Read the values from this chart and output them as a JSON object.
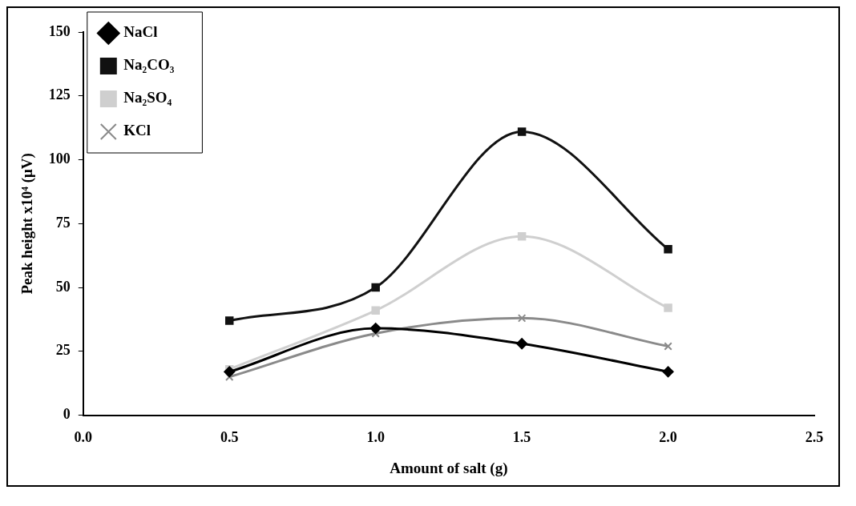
{
  "chart_data": {
    "type": "line",
    "xlabel": "Amount of salt (g)",
    "ylabel": "Peak height x10⁴ (μV)",
    "x": [
      0.5,
      1.0,
      1.5,
      2.0
    ],
    "series": [
      {
        "name": "NaCl",
        "color": "#000000",
        "marker": "diamond",
        "values": [
          17,
          34,
          28,
          17
        ]
      },
      {
        "name": "Na₂CO₃",
        "color": "#111111",
        "marker": "square",
        "values": [
          37,
          50,
          111,
          65
        ]
      },
      {
        "name": "Na₂SO₄",
        "color": "#cfcfcf",
        "marker": "square",
        "values": [
          18,
          41,
          70,
          42
        ]
      },
      {
        "name": "KCl",
        "color": "#8a8a8a",
        "marker": "cross",
        "values": [
          15,
          32,
          38,
          27
        ]
      }
    ],
    "xlim": [
      0,
      2.5
    ],
    "xticks": [
      {
        "value": 0,
        "label": "0.0"
      },
      {
        "value": 0.5,
        "label": "0.5"
      },
      {
        "value": 1,
        "label": "1.0"
      },
      {
        "value": 1.5,
        "label": "1.5"
      },
      {
        "value": 2,
        "label": "2.0"
      },
      {
        "value": 2.5,
        "label": "2.5"
      }
    ],
    "ylim": [
      0,
      150
    ],
    "yticks": [
      0,
      25,
      50,
      75,
      100,
      125,
      150
    ],
    "legend": "top left",
    "grid": false
  }
}
